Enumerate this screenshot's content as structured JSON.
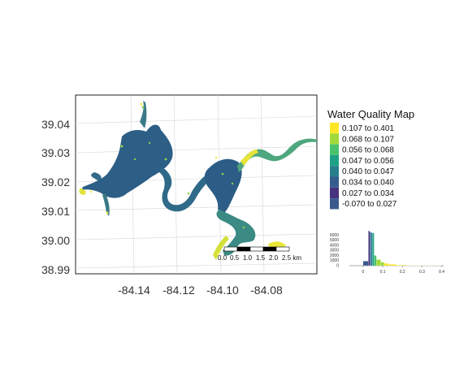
{
  "map": {
    "type": "raster-map",
    "y_ticks": [
      "39.04",
      "39.03",
      "39.02",
      "39.01",
      "39.00",
      "38.99"
    ],
    "x_ticks": [
      "-84.14",
      "-84.12",
      "-84.10",
      "-84.08"
    ],
    "scalebar": {
      "labels": [
        "0.0",
        "0.5",
        "1.0",
        "1.5",
        "2.0",
        "2.5 km"
      ]
    }
  },
  "legend": {
    "title": "Water Quality Map",
    "classes": [
      {
        "label": "0.107 to 0.401",
        "color": "#fde725"
      },
      {
        "label": "0.068 to 0.107",
        "color": "#a0da39"
      },
      {
        "label": "0.056 to 0.068",
        "color": "#4ac16d"
      },
      {
        "label": "0.047 to 0.056",
        "color": "#1fa187"
      },
      {
        "label": "0.040 to 0.047",
        "color": "#277f8e"
      },
      {
        "label": "0.034 to 0.040",
        "color": "#365c8d"
      },
      {
        "label": "0.027 to 0.034",
        "color": "#46327e"
      },
      {
        "label": "-0.070 to 0.027",
        "color": "#3b5b8c"
      }
    ]
  },
  "chart_data": {
    "type": "bar",
    "x_ticks": [
      "0",
      "0.1",
      "0.2",
      "0.3",
      "0.4"
    ],
    "y_ticks": [
      "0",
      "1000",
      "2000",
      "3000",
      "4000",
      "5000",
      "6000"
    ],
    "xlim": [
      -0.07,
      0.41
    ],
    "ylim": [
      0,
      7000
    ],
    "bins": [
      {
        "x0": 0.0,
        "x1": 0.027,
        "count": 900,
        "color": "#3b5b8c"
      },
      {
        "x0": 0.027,
        "x1": 0.034,
        "count": 6800,
        "color": "#46327e"
      },
      {
        "x0": 0.034,
        "x1": 0.04,
        "count": 6600,
        "color": "#365c8d"
      },
      {
        "x0": 0.04,
        "x1": 0.047,
        "count": 6500,
        "color": "#277f8e"
      },
      {
        "x0": 0.047,
        "x1": 0.056,
        "count": 6400,
        "color": "#1fa187"
      },
      {
        "x0": 0.056,
        "x1": 0.068,
        "count": 2000,
        "color": "#4ac16d"
      },
      {
        "x0": 0.068,
        "x1": 0.09,
        "count": 1200,
        "color": "#a0da39"
      },
      {
        "x0": 0.09,
        "x1": 0.107,
        "count": 700,
        "color": "#a0da39"
      },
      {
        "x0": 0.107,
        "x1": 0.13,
        "count": 450,
        "color": "#fde725"
      },
      {
        "x0": 0.13,
        "x1": 0.17,
        "count": 250,
        "color": "#fde725"
      },
      {
        "x0": 0.17,
        "x1": 0.22,
        "count": 120,
        "color": "#fde725"
      },
      {
        "x0": 0.22,
        "x1": 0.3,
        "count": 60,
        "color": "#fde725"
      },
      {
        "x0": 0.3,
        "x1": 0.401,
        "count": 25,
        "color": "#fde725"
      }
    ]
  }
}
